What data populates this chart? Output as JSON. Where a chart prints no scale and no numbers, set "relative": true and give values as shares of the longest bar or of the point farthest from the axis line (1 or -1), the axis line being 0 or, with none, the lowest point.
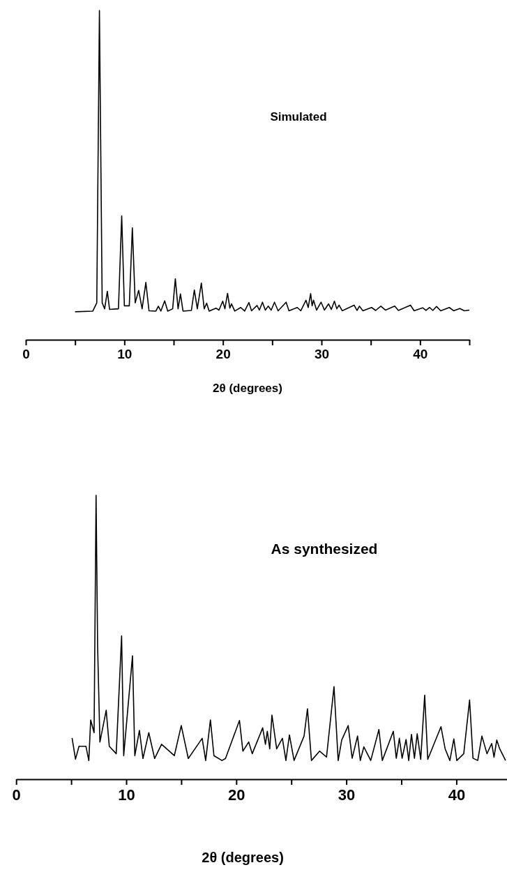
{
  "chart_data": [
    {
      "type": "line",
      "relative": true,
      "xlabel": "2θ (degrees)",
      "xlim": [
        0,
        45
      ],
      "xticks": [
        0,
        {
          "value": 5,
          "label": null
        },
        10,
        {
          "value": 15,
          "label": null
        },
        20,
        {
          "value": 25,
          "label": null
        },
        30,
        {
          "value": 35,
          "label": null
        },
        40,
        {
          "value": 45,
          "label": null
        }
      ],
      "series": [
        {
          "name": "Simulated",
          "color": "#000000",
          "x": [
            5.0,
            6.8,
            7.2,
            7.47,
            7.75,
            8.0,
            8.27,
            8.5,
            9.4,
            9.73,
            10.0,
            10.5,
            10.81,
            11.1,
            11.45,
            11.8,
            12.18,
            12.5,
            13.2,
            13.45,
            13.7,
            14.09,
            14.4,
            14.9,
            15.17,
            15.45,
            15.69,
            15.95,
            16.8,
            17.1,
            17.4,
            17.81,
            18.1,
            18.35,
            18.6,
            19.29,
            19.6,
            19.98,
            20.2,
            20.47,
            20.7,
            20.87,
            21.2,
            21.81,
            22.2,
            22.64,
            22.9,
            23.46,
            23.7,
            24.01,
            24.3,
            24.59,
            24.9,
            25.23,
            25.6,
            26.41,
            26.7,
            27.54,
            27.9,
            28.43,
            28.65,
            28.9,
            29.05,
            29.19,
            29.5,
            29.96,
            30.3,
            30.72,
            31.0,
            31.31,
            31.55,
            31.78,
            32.1,
            33.31,
            33.6,
            33.85,
            34.2,
            35.08,
            35.5,
            36.02,
            36.5,
            37.43,
            37.8,
            39.03,
            39.4,
            40.26,
            40.6,
            40.97,
            41.3,
            41.67,
            42.1,
            42.97,
            43.4,
            44.03,
            44.5,
            45.0
          ],
          "values": [
            0.085,
            0.087,
            0.112,
            1.0,
            0.112,
            0.094,
            0.147,
            0.092,
            0.094,
            0.376,
            0.103,
            0.103,
            0.34,
            0.112,
            0.15,
            0.094,
            0.174,
            0.088,
            0.087,
            0.102,
            0.087,
            0.118,
            0.087,
            0.094,
            0.185,
            0.094,
            0.139,
            0.087,
            0.089,
            0.151,
            0.094,
            0.172,
            0.094,
            0.111,
            0.087,
            0.096,
            0.09,
            0.117,
            0.094,
            0.141,
            0.096,
            0.109,
            0.087,
            0.098,
            0.087,
            0.113,
            0.088,
            0.104,
            0.09,
            0.114,
            0.09,
            0.102,
            0.09,
            0.114,
            0.088,
            0.114,
            0.088,
            0.098,
            0.088,
            0.12,
            0.098,
            0.14,
            0.103,
            0.12,
            0.09,
            0.114,
            0.09,
            0.109,
            0.092,
            0.117,
            0.094,
            0.105,
            0.088,
            0.105,
            0.089,
            0.102,
            0.088,
            0.098,
            0.089,
            0.102,
            0.09,
            0.102,
            0.089,
            0.105,
            0.088,
            0.097,
            0.089,
            0.098,
            0.089,
            0.101,
            0.088,
            0.098,
            0.088,
            0.095,
            0.088,
            0.09
          ]
        }
      ]
    },
    {
      "type": "line",
      "relative": true,
      "xlabel": "2θ (degrees)",
      "xlim": [
        0,
        44.6
      ],
      "xticks": [
        0,
        {
          "value": 5,
          "label": null
        },
        10,
        {
          "value": 15,
          "label": null
        },
        20,
        {
          "value": 25,
          "label": null
        },
        30,
        {
          "value": 35,
          "label": null
        },
        40
      ],
      "series": [
        {
          "name": "As synthesized",
          "color": "#000000",
          "x": [
            5.08,
            5.39,
            5.71,
            6.34,
            6.6,
            6.77,
            7.08,
            7.26,
            7.4,
            7.61,
            8.18,
            8.46,
            9.09,
            9.58,
            9.77,
            10.57,
            10.78,
            11.2,
            11.52,
            12.05,
            12.58,
            13.21,
            14.37,
            15.0,
            15.64,
            16.17,
            16.9,
            17.22,
            17.65,
            17.97,
            18.7,
            19.02,
            20.29,
            20.6,
            21.13,
            21.45,
            22.4,
            22.65,
            22.82,
            23.04,
            23.24,
            23.67,
            24.19,
            24.51,
            24.83,
            25.25,
            26.16,
            26.47,
            26.83,
            27.57,
            28.2,
            28.88,
            29.26,
            29.58,
            30.17,
            30.53,
            31.02,
            31.27,
            31.59,
            32.22,
            32.96,
            33.27,
            34.27,
            34.54,
            34.82,
            35.07,
            35.43,
            35.67,
            35.92,
            36.19,
            36.44,
            36.76,
            37.12,
            37.4,
            38.6,
            38.98,
            39.41,
            39.77,
            40.04,
            40.67,
            41.2,
            41.51,
            41.94,
            42.32,
            42.78,
            43.21,
            43.42,
            43.67,
            43.94,
            44.47
          ],
          "values": [
            0.145,
            0.071,
            0.116,
            0.116,
            0.066,
            0.209,
            0.164,
            1.0,
            0.468,
            0.131,
            0.243,
            0.116,
            0.09,
            0.505,
            0.083,
            0.435,
            0.083,
            0.172,
            0.073,
            0.164,
            0.073,
            0.123,
            0.083,
            0.189,
            0.073,
            0.103,
            0.144,
            0.066,
            0.209,
            0.083,
            0.066,
            0.073,
            0.207,
            0.099,
            0.131,
            0.09,
            0.181,
            0.123,
            0.169,
            0.107,
            0.226,
            0.107,
            0.144,
            0.066,
            0.156,
            0.066,
            0.152,
            0.248,
            0.066,
            0.099,
            0.078,
            0.326,
            0.066,
            0.138,
            0.189,
            0.074,
            0.152,
            0.066,
            0.114,
            0.066,
            0.175,
            0.066,
            0.169,
            0.074,
            0.144,
            0.074,
            0.14,
            0.066,
            0.158,
            0.074,
            0.16,
            0.07,
            0.296,
            0.07,
            0.185,
            0.107,
            0.066,
            0.142,
            0.066,
            0.09,
            0.279,
            0.074,
            0.066,
            0.152,
            0.09,
            0.126,
            0.078,
            0.138,
            0.107,
            0.066
          ]
        }
      ]
    }
  ]
}
